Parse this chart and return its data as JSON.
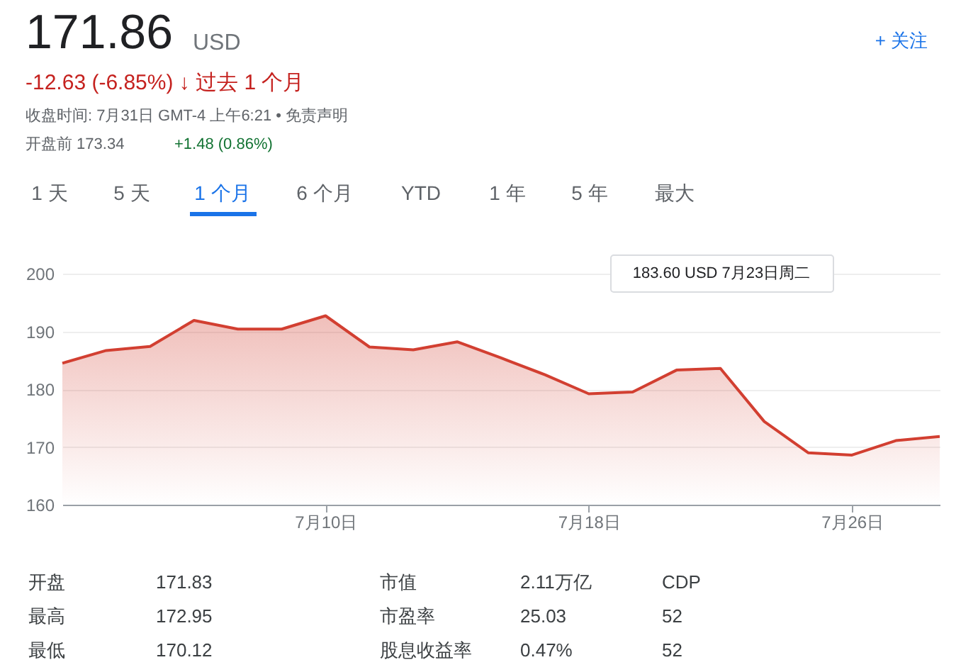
{
  "chart_data": {
    "type": "area",
    "title": "171.86",
    "categories": [
      null,
      null,
      null,
      null,
      null,
      null,
      "7月10日",
      null,
      null,
      null,
      null,
      null,
      "7月18日",
      null,
      null,
      null,
      null,
      null,
      "7月26日",
      null,
      null
    ],
    "series": [
      {
        "color": "#d23f31",
        "values": [
          184.5,
          186.7,
          187.4,
          191.9,
          190.4,
          190.4,
          192.7,
          187.3,
          186.8,
          188.2,
          185.4,
          182.5,
          179.2,
          179.5,
          183.3,
          183.6,
          174.4,
          169.0,
          168.6,
          171.1,
          171.8
        ]
      }
    ],
    "ylim": [
      160,
      200
    ],
    "yticks": [
      160,
      170,
      180,
      190,
      200
    ],
    "grid": "y",
    "line_style": "solid",
    "annotations": [
      "USD",
      "-12.63 (-6.85%) ↓ 过去 1 个月",
      "收盘时间: 7月31日 GMT-4 上午6:21 • 免责声明",
      "开盘前 173.34",
      "+1.48 (0.86%)",
      "+ 关注",
      "1 天",
      "5 天",
      "1 个月",
      "6 个月",
      "YTD",
      "1 年",
      "5 年",
      "最大",
      "183.60 USD  7月23日周二",
      "开盘",
      "171.83",
      "最高",
      "172.95",
      "最低",
      "170.12",
      "市值",
      "2.11万亿",
      "市盈率",
      "25.03",
      "股息收益率",
      "0.47%",
      "CDP",
      "52",
      "52"
    ]
  }
}
